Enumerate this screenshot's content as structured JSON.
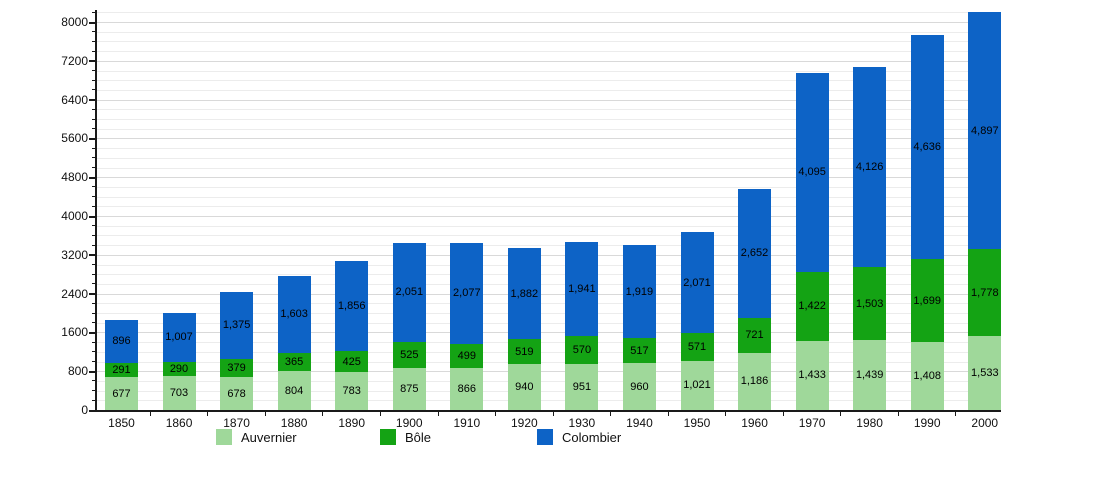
{
  "chart_data": {
    "type": "bar",
    "stacked": true,
    "title": "",
    "xlabel": "",
    "ylabel": "",
    "grid": true,
    "legend_position": "bottom",
    "categories": [
      "1850",
      "1860",
      "1870",
      "1880",
      "1890",
      "1900",
      "1910",
      "1920",
      "1930",
      "1940",
      "1950",
      "1960",
      "1970",
      "1980",
      "1990",
      "2000"
    ],
    "series": [
      {
        "name": "Auvernier",
        "color": "#9fd89a",
        "values": [
          677,
          703,
          678,
          804,
          783,
          875,
          866,
          940,
          951,
          960,
          1021,
          1186,
          1433,
          1439,
          1408,
          1533
        ]
      },
      {
        "name": "Bôle",
        "color": "#14a314",
        "values": [
          291,
          290,
          379,
          365,
          425,
          525,
          499,
          519,
          570,
          517,
          571,
          721,
          1422,
          1503,
          1699,
          1778
        ]
      },
      {
        "name": "Colombier",
        "color": "#0d63c6",
        "values": [
          896,
          1007,
          1375,
          1603,
          1856,
          2051,
          2077,
          1882,
          1941,
          1919,
          2071,
          2652,
          4095,
          4126,
          4636,
          4897
        ]
      }
    ],
    "y_axis": {
      "min": 0,
      "max": 8000,
      "major_step": 800,
      "minor_step": 200,
      "tick_labels": [
        "0",
        "800",
        "1600",
        "2400",
        "3200",
        "4000",
        "4800",
        "5600",
        "6400",
        "7200",
        "8000"
      ]
    },
    "colors": {
      "grid_minor": "#ececec",
      "grid_major": "#d9d9d9",
      "axis": "#1a1a1a",
      "label_text": "#000000"
    }
  }
}
